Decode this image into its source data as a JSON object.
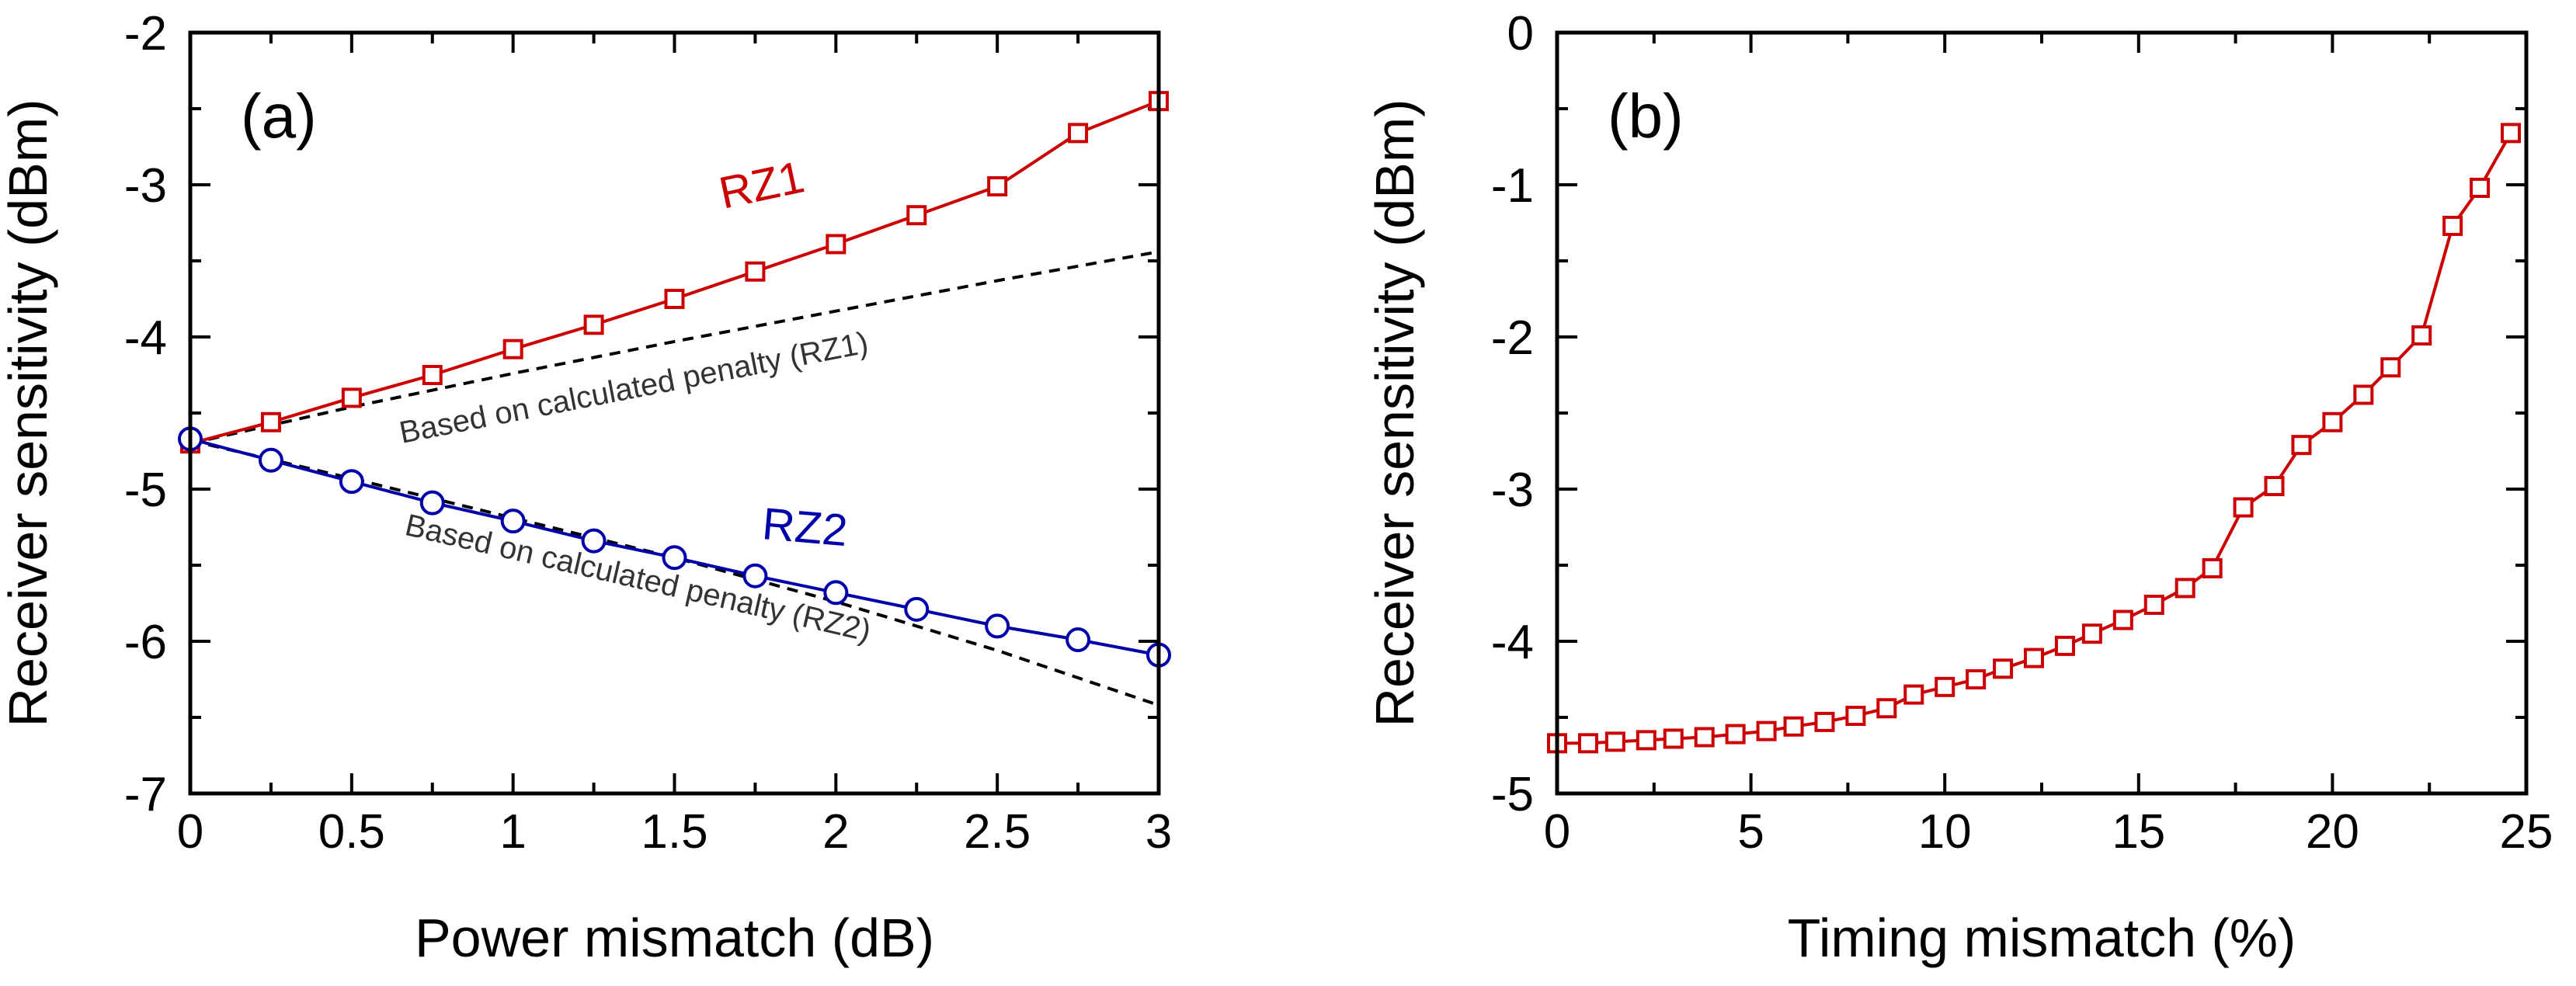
{
  "chart_data": [
    {
      "type": "line",
      "panel_label": "(a)",
      "xlabel": "Power mismatch (dB)",
      "ylabel": "Receiver sensitivity (dBm)",
      "xlim": [
        0,
        3
      ],
      "ylim": [
        -7,
        -2
      ],
      "xticks": [
        0,
        0.5,
        1,
        1.5,
        2,
        2.5,
        3
      ],
      "xtick_labels": [
        "0",
        "0.5",
        "1",
        "1.5",
        "2",
        "2.5",
        "3"
      ],
      "yticks": [
        -7,
        -6,
        -5,
        -4,
        -3,
        -2
      ],
      "ytick_labels": [
        "-7",
        "-6",
        "-5",
        "-4",
        "-3",
        "-2"
      ],
      "series": [
        {
          "name": "RZ1",
          "color": "#cc0000",
          "marker": "square",
          "style": "solid",
          "x": [
            0,
            0.25,
            0.5,
            0.75,
            1,
            1.25,
            1.5,
            1.75,
            2,
            2.25,
            2.5,
            2.75,
            3
          ],
          "y": [
            -4.7,
            -4.56,
            -4.4,
            -4.25,
            -4.08,
            -3.92,
            -3.75,
            -3.57,
            -3.39,
            -3.2,
            -3.01,
            -2.66,
            -2.45
          ]
        },
        {
          "name": "RZ2",
          "color": "#0000aa",
          "marker": "circle",
          "style": "solid",
          "x": [
            0,
            0.25,
            0.5,
            0.75,
            1,
            1.25,
            1.5,
            1.75,
            2,
            2.25,
            2.5,
            2.75,
            3
          ],
          "y": [
            -4.67,
            -4.81,
            -4.95,
            -5.09,
            -5.21,
            -5.34,
            -5.45,
            -5.57,
            -5.68,
            -5.79,
            -5.9,
            -5.99,
            -6.09
          ]
        },
        {
          "name": "Based on calculated penalty (RZ1)",
          "color": "#000000",
          "marker": "none",
          "style": "dashed",
          "x": [
            0,
            0.5,
            1,
            1.5,
            2,
            2.5,
            3
          ],
          "y": [
            -4.7,
            -4.46,
            -4.24,
            -4.03,
            -3.83,
            -3.63,
            -3.44
          ]
        },
        {
          "name": "Based on calculated penalty (RZ2)",
          "color": "#000000",
          "marker": "none",
          "style": "dashed",
          "x": [
            0,
            0.5,
            1,
            1.5,
            2,
            2.5,
            3
          ],
          "y": [
            -4.68,
            -4.93,
            -5.19,
            -5.45,
            -5.74,
            -6.06,
            -6.42
          ]
        }
      ],
      "labels": {
        "rz1": "RZ1",
        "rz2": "RZ2",
        "calc_rz1": "Based on calculated penalty (RZ1)",
        "calc_rz2": "Based on calculated penalty (RZ2)"
      }
    },
    {
      "type": "line",
      "panel_label": "(b)",
      "xlabel": "Timing mismatch (%)",
      "ylabel": "Receiver sensitivity (dBm)",
      "xlim": [
        0,
        25
      ],
      "ylim": [
        -5,
        0
      ],
      "xticks": [
        0,
        5,
        10,
        15,
        20,
        25
      ],
      "xtick_labels": [
        "0",
        "5",
        "10",
        "15",
        "20",
        "25"
      ],
      "yticks": [
        -5,
        -4,
        -3,
        -2,
        -1,
        0
      ],
      "ytick_labels": [
        "-5",
        "-4",
        "-3",
        "-2",
        "-1",
        "0"
      ],
      "series": [
        {
          "name": "Timing mismatch",
          "color": "#cc0000",
          "marker": "square",
          "style": "solid",
          "x": [
            0,
            0.8,
            1.5,
            2.3,
            3.0,
            3.8,
            4.6,
            5.4,
            6.1,
            6.9,
            7.7,
            8.5,
            9.2,
            10.0,
            10.8,
            11.5,
            12.3,
            13.1,
            13.8,
            14.6,
            15.4,
            16.2,
            16.9,
            17.7,
            18.5,
            19.2,
            20.0,
            20.8,
            21.5,
            22.3,
            23.1,
            23.8,
            24.6
          ],
          "y": [
            -4.67,
            -4.67,
            -4.66,
            -4.65,
            -4.64,
            -4.63,
            -4.61,
            -4.59,
            -4.56,
            -4.53,
            -4.49,
            -4.44,
            -4.35,
            -4.3,
            -4.25,
            -4.18,
            -4.11,
            -4.03,
            -3.95,
            -3.86,
            -3.76,
            -3.65,
            -3.52,
            -3.12,
            -2.98,
            -2.71,
            -2.56,
            -2.38,
            -2.2,
            -1.99,
            -1.27,
            -1.02,
            -0.66
          ]
        }
      ]
    }
  ]
}
